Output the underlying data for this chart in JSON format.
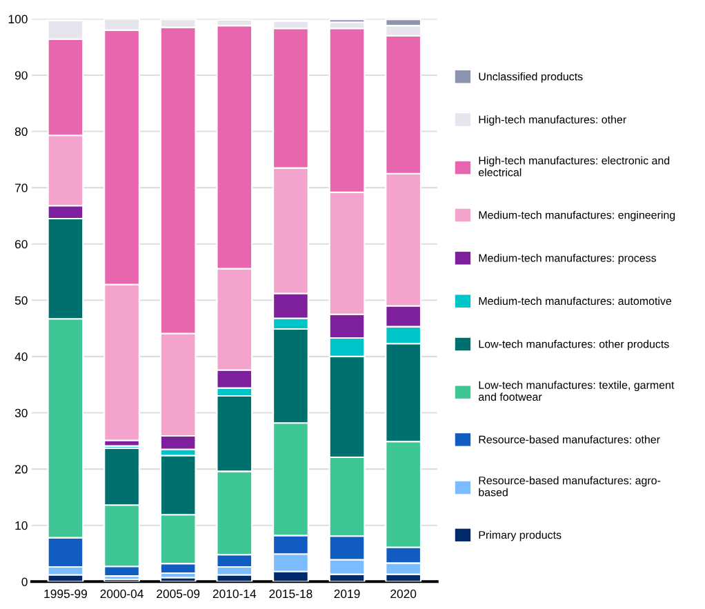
{
  "chart_data": {
    "type": "bar",
    "stacked": true,
    "categories": [
      "1995-99",
      "2000-04",
      "2005-09",
      "2010-14",
      "2015-18",
      "2019",
      "2020"
    ],
    "series": [
      {
        "name": "Primary products",
        "color": "#002a6c",
        "values": [
          1.2,
          0.4,
          0.7,
          1.2,
          1.8,
          1.3,
          1.3
        ]
      },
      {
        "name": "Resource-based manufactures: agro-\nbased",
        "color": "#7bbcff",
        "values": [
          1.4,
          0.6,
          0.8,
          1.4,
          3.1,
          2.6,
          2.0
        ]
      },
      {
        "name": "Resource-based manufactures: other",
        "color": "#115cc0",
        "values": [
          5.2,
          1.7,
          1.7,
          2.2,
          3.3,
          4.2,
          2.8
        ]
      },
      {
        "name": "Low-tech manufactures: textile, garment\nand footwear",
        "color": "#3ec695",
        "values": [
          38.9,
          10.9,
          8.7,
          14.8,
          20.0,
          14.0,
          18.8
        ]
      },
      {
        "name": "Low-tech manufactures: other products",
        "color": "#00706e",
        "values": [
          17.8,
          10.1,
          10.5,
          13.4,
          16.7,
          17.9,
          17.4
        ]
      },
      {
        "name": "Medium-tech manufactures: automotive",
        "color": "#00c5c8",
        "values": [
          null,
          0.4,
          1.1,
          1.4,
          1.9,
          3.3,
          3.0
        ]
      },
      {
        "name": "Medium-tech manufactures: process",
        "color": "#7e1f9d",
        "values": [
          2.3,
          1.0,
          2.4,
          3.2,
          4.4,
          4.2,
          3.7
        ]
      },
      {
        "name": "Medium-tech manufactures: engineering",
        "color": "#f4a4cc",
        "values": [
          12.5,
          27.7,
          18.2,
          18.0,
          22.3,
          21.7,
          23.5
        ]
      },
      {
        "name": "High-tech manufactures: electronic and\nelectrical",
        "color": "#e866ad",
        "values": [
          17.1,
          45.2,
          54.4,
          43.2,
          24.8,
          29.1,
          24.5
        ]
      },
      {
        "name": "High-tech manufactures: other",
        "color": "#e6e4ec",
        "values": [
          3.3,
          2.0,
          1.4,
          1.0,
          1.3,
          1.1,
          1.8
        ]
      },
      {
        "name": "Unclassified products",
        "color": "#8d94ad",
        "values": [
          null,
          null,
          null,
          null,
          null,
          0.5,
          1.1
        ]
      }
    ],
    "ylim": [
      0,
      100
    ],
    "yticks": [
      0,
      10,
      20,
      30,
      40,
      50,
      60,
      70,
      80,
      90,
      100
    ],
    "grid": "y",
    "legend": "right"
  }
}
